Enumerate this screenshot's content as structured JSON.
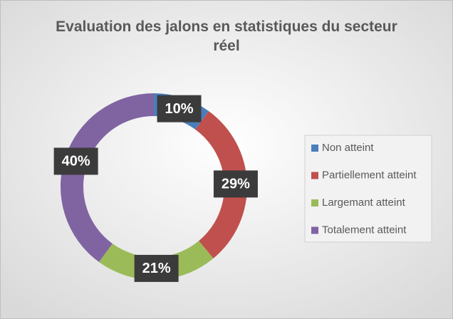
{
  "chart_data": {
    "type": "donut",
    "title": "Evaluation des jalons en statistiques du secteur réel",
    "categories": [
      "Non atteint",
      "Partiellement atteint",
      "Largemant atteint",
      "Totalement atteint"
    ],
    "values": [
      10,
      29,
      21,
      40
    ],
    "value_labels": [
      "10%",
      "29%",
      "21%",
      "40%"
    ],
    "colors": [
      "#4a7ebb",
      "#c0504d",
      "#9bbb59",
      "#8064a2"
    ],
    "legend": "right"
  }
}
